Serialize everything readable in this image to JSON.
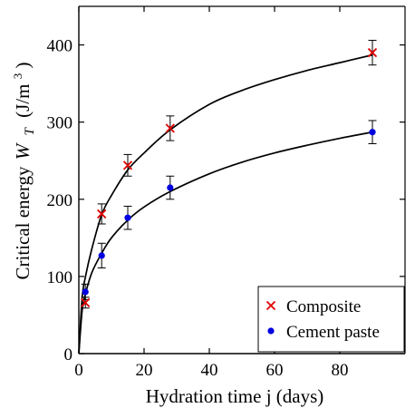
{
  "chart_data": {
    "type": "scatter",
    "xlabel": "Hydration time j (days)",
    "ylabel": {
      "prefix": "Critical energy",
      "symbol": "W",
      "subscript": "T",
      "unit_open": "(J/m",
      "unit_power": "3",
      "unit_close": ")"
    },
    "xlim": [
      0,
      100
    ],
    "ylim": [
      0,
      450
    ],
    "x_ticks": [
      0,
      20,
      40,
      60,
      80
    ],
    "y_ticks": [
      0,
      100,
      200,
      300,
      400
    ],
    "grid": false,
    "legend_position": "bottom-right",
    "series": [
      {
        "name": "Composite",
        "marker": "x",
        "color": "#e00000",
        "points": [
          {
            "x": 2,
            "y": 66,
            "err": 7
          },
          {
            "x": 7,
            "y": 181,
            "err": 13
          },
          {
            "x": 15,
            "y": 244,
            "err": 14
          },
          {
            "x": 28,
            "y": 292,
            "err": 16
          },
          {
            "x": 90,
            "y": 390,
            "err": 16
          }
        ],
        "fit_curve": [
          [
            0,
            0
          ],
          [
            1,
            72
          ],
          [
            2,
            99
          ],
          [
            4,
            136
          ],
          [
            7,
            180
          ],
          [
            10,
            205
          ],
          [
            15,
            238
          ],
          [
            20,
            260
          ],
          [
            28,
            290
          ],
          [
            40,
            323
          ],
          [
            50,
            341
          ],
          [
            60,
            355
          ],
          [
            70,
            367
          ],
          [
            80,
            377
          ],
          [
            90,
            387
          ]
        ]
      },
      {
        "name": "Cement paste",
        "marker": "dot",
        "color": "#0000e0",
        "points": [
          {
            "x": 2,
            "y": 80,
            "err": 10
          },
          {
            "x": 7,
            "y": 127,
            "err": 16
          },
          {
            "x": 15,
            "y": 176,
            "err": 15
          },
          {
            "x": 28,
            "y": 215,
            "err": 15
          },
          {
            "x": 90,
            "y": 287,
            "err": 15
          }
        ],
        "fit_curve": [
          [
            0,
            0
          ],
          [
            1,
            55
          ],
          [
            2,
            77
          ],
          [
            4,
            105
          ],
          [
            7,
            130
          ],
          [
            10,
            150
          ],
          [
            15,
            173
          ],
          [
            20,
            190
          ],
          [
            28,
            210
          ],
          [
            40,
            233
          ],
          [
            50,
            248
          ],
          [
            60,
            260
          ],
          [
            70,
            270
          ],
          [
            80,
            279
          ],
          [
            90,
            287
          ]
        ]
      }
    ],
    "legend": [
      {
        "label": "Composite",
        "marker": "x",
        "color": "#e00000"
      },
      {
        "label": "Cement paste",
        "marker": "dot",
        "color": "#0000e0"
      }
    ]
  }
}
